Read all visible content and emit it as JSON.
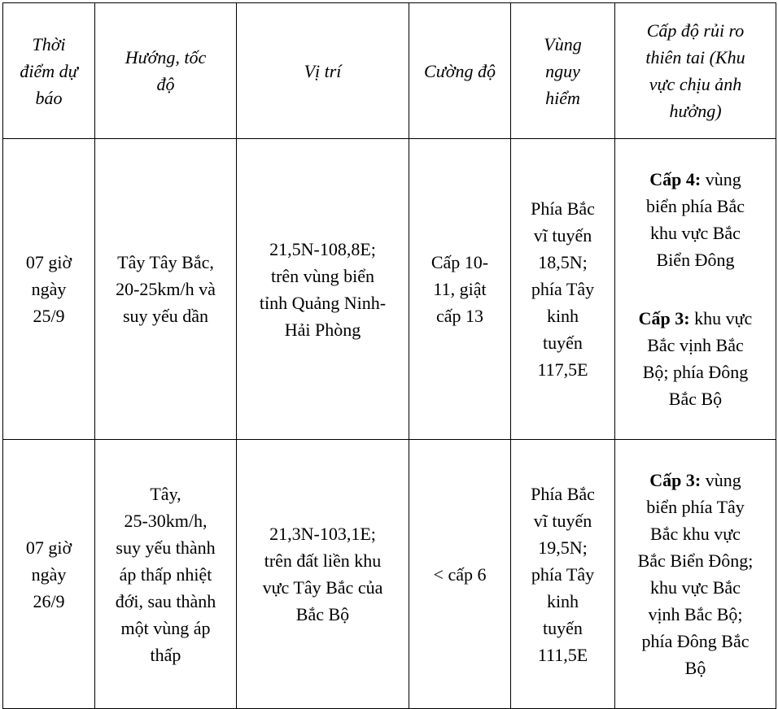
{
  "headers": [
    "Thời\nđiểm dự\nbáo",
    "Hướng, tốc\nđộ",
    "Vị trí",
    "Cường độ",
    "Vùng\nnguy\nhiểm",
    "Cấp độ rủi ro\nthiên tai (Khu\nvực chịu ảnh\nhưởng)"
  ],
  "rows": [
    {
      "time": "07 giờ\nngày\n25/9",
      "direction": "Tây Tây Bắc,\n20-25km/h và\nsuy yếu dần",
      "position": "21,5N-108,8E;\ntrên vùng biển\ntỉnh Quảng Ninh-\nHải Phòng",
      "intensity": "Cấp 10-\n11, giật\ncấp 13",
      "danger": "Phía Bắc\nvĩ tuyến\n18,5N;\nphía Tây\nkinh\ntuyến\n117,5E",
      "risk": [
        {
          "level": "Cấp 4:",
          "text": " vùng\nbiển phía Bắc\nkhu vực Bắc\nBiển Đông"
        },
        {
          "level": "Cấp 3:",
          "text": " khu vực\nBắc vịnh Bắc\nBộ; phía Đông\nBắc Bộ"
        }
      ]
    },
    {
      "time": "07 giờ\nngày\n26/9",
      "direction": "Tây,\n25-30km/h,\nsuy yếu thành\náp thấp nhiệt\nđới, sau thành\nmột vùng áp\nthấp",
      "position": "21,3N-103,1E;\ntrên đất liền khu\nvực Tây Bắc của\nBắc Bộ",
      "intensity": "< cấp 6",
      "danger": "Phía Bắc\nvĩ tuyến\n19,5N;\nphía Tây\nkinh\ntuyến\n111,5E",
      "risk": [
        {
          "level": "Cấp 3:",
          "text": " vùng\nbiển phía Tây\nBắc khu vực\nBắc Biển Đông;\nkhu vực Bắc\nvịnh Bắc Bộ;\nphía Đông Bắc\nBộ"
        }
      ]
    }
  ]
}
